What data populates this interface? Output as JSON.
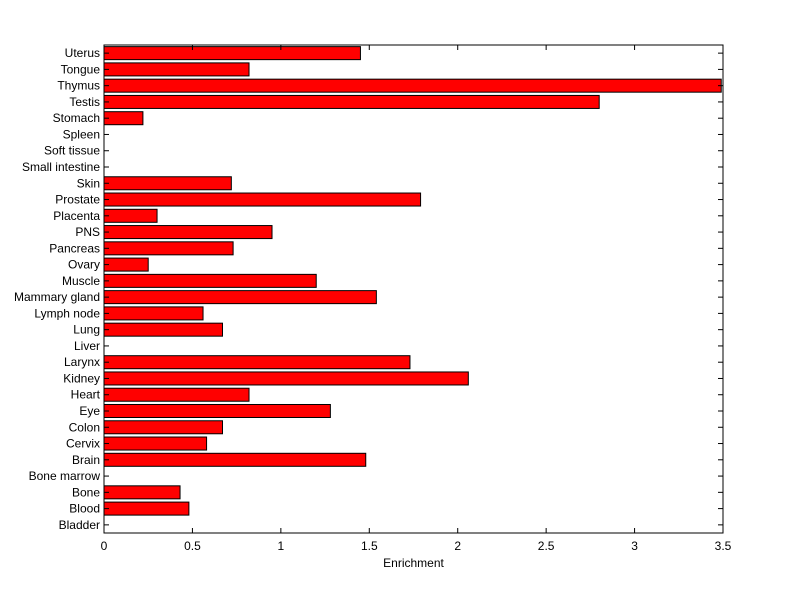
{
  "chart_data": {
    "type": "bar",
    "orientation": "horizontal",
    "categories": [
      "Bladder",
      "Blood",
      "Bone",
      "Bone marrow",
      "Brain",
      "Cervix",
      "Colon",
      "Eye",
      "Heart",
      "Kidney",
      "Larynx",
      "Liver",
      "Lung",
      "Lymph node",
      "Mammary gland",
      "Muscle",
      "Ovary",
      "Pancreas",
      "PNS",
      "Placenta",
      "Prostate",
      "Skin",
      "Small intestine",
      "Soft tissue",
      "Spleen",
      "Stomach",
      "Testis",
      "Thymus",
      "Tongue",
      "Uterus"
    ],
    "values": [
      0,
      0.48,
      0.43,
      0,
      1.48,
      0.58,
      0.67,
      1.28,
      0.82,
      2.06,
      1.73,
      0,
      0.67,
      0.56,
      1.54,
      1.2,
      0.25,
      0.73,
      0.95,
      0.3,
      1.79,
      0.72,
      0,
      0,
      0,
      0.22,
      2.8,
      3.49,
      0.82,
      1.45
    ],
    "xlabel": "Enrichment",
    "ylabel": "",
    "title": "",
    "xlim": [
      0,
      3.5
    ],
    "xticks": [
      "0",
      "0.5",
      "1",
      "1.5",
      "2",
      "2.5",
      "3",
      "3.5"
    ],
    "grid": false,
    "colors": {
      "bar_fill": "#ff0000",
      "bar_edge": "#000000"
    }
  }
}
